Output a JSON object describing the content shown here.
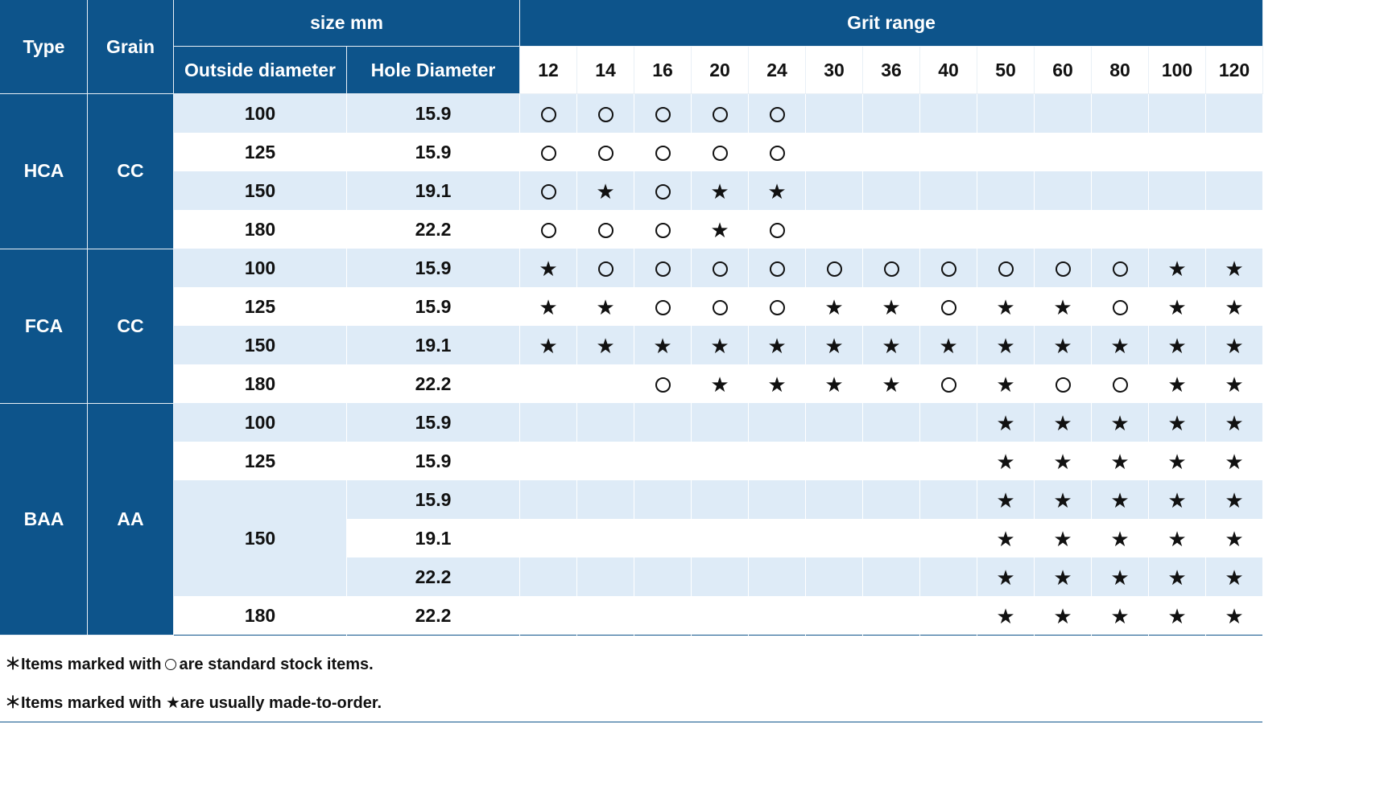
{
  "header": {
    "type": "Type",
    "grain": "Grain",
    "size": "size mm",
    "outside_diameter": "Outside diameter",
    "hole_diameter": "Hole Diameter",
    "grit_range": "Grit range",
    "grits": [
      "12",
      "14",
      "16",
      "20",
      "24",
      "30",
      "36",
      "40",
      "50",
      "60",
      "80",
      "100",
      "120"
    ]
  },
  "groups": [
    {
      "type": "HCA",
      "grain": "CC",
      "rows": [
        {
          "od": "100",
          "hole": "15.9",
          "marks": [
            "o",
            "o",
            "o",
            "o",
            "o",
            "",
            "",
            "",
            "",
            "",
            "",
            "",
            ""
          ]
        },
        {
          "od": "125",
          "hole": "15.9",
          "marks": [
            "o",
            "o",
            "o",
            "o",
            "o",
            "",
            "",
            "",
            "",
            "",
            "",
            "",
            ""
          ]
        },
        {
          "od": "150",
          "hole": "19.1",
          "marks": [
            "o",
            "s",
            "o",
            "s",
            "s",
            "",
            "",
            "",
            "",
            "",
            "",
            "",
            ""
          ]
        },
        {
          "od": "180",
          "hole": "22.2",
          "marks": [
            "o",
            "o",
            "o",
            "s",
            "o",
            "",
            "",
            "",
            "",
            "",
            "",
            "",
            ""
          ]
        }
      ]
    },
    {
      "type": "FCA",
      "grain": "CC",
      "rows": [
        {
          "od": "100",
          "hole": "15.9",
          "marks": [
            "s",
            "o",
            "o",
            "o",
            "o",
            "o",
            "o",
            "o",
            "o",
            "o",
            "o",
            "s",
            "s"
          ]
        },
        {
          "od": "125",
          "hole": "15.9",
          "marks": [
            "s",
            "s",
            "o",
            "o",
            "o",
            "s",
            "s",
            "o",
            "s",
            "s",
            "o",
            "s",
            "s"
          ]
        },
        {
          "od": "150",
          "hole": "19.1",
          "marks": [
            "s",
            "s",
            "s",
            "s",
            "s",
            "s",
            "s",
            "s",
            "s",
            "s",
            "s",
            "s",
            "s"
          ]
        },
        {
          "od": "180",
          "hole": "22.2",
          "marks": [
            "",
            "",
            "o",
            "s",
            "s",
            "s",
            "s",
            "o",
            "s",
            "o",
            "o",
            "s",
            "s"
          ]
        }
      ]
    },
    {
      "type": "BAA",
      "grain": "AA",
      "rows": [
        {
          "od": "100",
          "hole": "15.9",
          "marks": [
            "",
            "",
            "",
            "",
            "",
            "",
            "",
            "",
            "s",
            "s",
            "s",
            "s",
            "s"
          ]
        },
        {
          "od": "125",
          "hole": "15.9",
          "marks": [
            "",
            "",
            "",
            "",
            "",
            "",
            "",
            "",
            "s",
            "s",
            "s",
            "s",
            "s"
          ]
        },
        {
          "od": "150",
          "odspan": 3,
          "hole": "15.9",
          "marks": [
            "",
            "",
            "",
            "",
            "",
            "",
            "",
            "",
            "s",
            "s",
            "s",
            "s",
            "s"
          ]
        },
        {
          "od": null,
          "hole": "19.1",
          "marks": [
            "",
            "",
            "",
            "",
            "",
            "",
            "",
            "",
            "s",
            "s",
            "s",
            "s",
            "s"
          ]
        },
        {
          "od": null,
          "hole": "22.2",
          "marks": [
            "",
            "",
            "",
            "",
            "",
            "",
            "",
            "",
            "s",
            "s",
            "s",
            "s",
            "s"
          ]
        },
        {
          "od": "180",
          "hole": "22.2",
          "marks": [
            "",
            "",
            "",
            "",
            "",
            "",
            "",
            "",
            "s",
            "s",
            "s",
            "s",
            "s"
          ]
        }
      ]
    }
  ],
  "symbols": {
    "star": "★",
    "circle": "circle-icon"
  },
  "notes": {
    "stock_prefix": "＊Items marked with",
    "stock_suffix": "are standard stock items.",
    "order_text": "＊Items marked with ★are usually made-to-order."
  },
  "colors": {
    "header_bg": "#0d548b",
    "row_shade": "#deebf7",
    "row_plain": "#ffffff"
  }
}
